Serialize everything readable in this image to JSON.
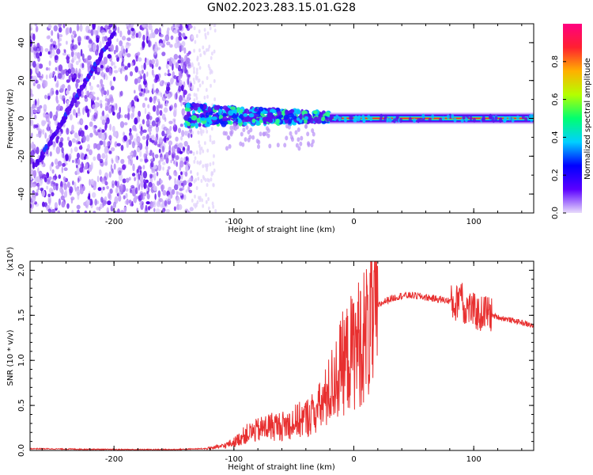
{
  "chart_data": [
    {
      "type": "heatmap",
      "title": "GN02.2023.283.15.01.G28",
      "xlabel": "Height of straight line (km)",
      "ylabel": "Frequency (Hz)",
      "xlim": [
        -270,
        150
      ],
      "ylim": [
        -50,
        50
      ],
      "xticks": [
        -200,
        -100,
        0,
        100
      ],
      "yticks": [
        -40,
        -20,
        0,
        20,
        40
      ],
      "colorbar": {
        "label": "Normalized spectral amplitude",
        "range": [
          0.0,
          1.0
        ],
        "ticks": [
          0.0,
          0.2,
          0.4,
          0.6,
          0.8
        ],
        "colormap": [
          "#e8dcfb",
          "#5b00ff",
          "#0000ff",
          "#00d0ff",
          "#00ff70",
          "#b4ff00",
          "#ffb000",
          "#ff2030",
          "#ff0080"
        ]
      },
      "features": {
        "noise_region_x": [
          -270,
          -135
        ],
        "diagonal_track": {
          "x": [
            -265,
            -200
          ],
          "y": [
            -25,
            45
          ]
        },
        "carrier_line_y": 0,
        "carrier_x": [
          -140,
          150
        ]
      }
    },
    {
      "type": "line",
      "xlabel": "Height of straight line (km)",
      "ylabel": "SNR (10 * v/v)",
      "multiplier": "(x10⁴)",
      "xlim": [
        -270,
        150
      ],
      "ylim": [
        0,
        2.1
      ],
      "xticks": [
        -200,
        -100,
        0,
        100
      ],
      "yticks": [
        0.0,
        0.5,
        1.0,
        1.5,
        2.0
      ],
      "color": "#e83030",
      "series": [
        {
          "name": "SNR",
          "x": [
            -270,
            -200,
            -150,
            -125,
            -110,
            -100,
            -90,
            -80,
            -70,
            -60,
            -50,
            -40,
            -35,
            -30,
            -25,
            -20,
            -15,
            -10,
            -5,
            0,
            5,
            10,
            15,
            20,
            25,
            30,
            35,
            40,
            50,
            60,
            70,
            80,
            85,
            88,
            90,
            92,
            95,
            100,
            105,
            110,
            115,
            120,
            130,
            140,
            150
          ],
          "values": [
            0.02,
            0.01,
            0.01,
            0.02,
            0.05,
            0.1,
            0.2,
            0.25,
            0.3,
            0.3,
            0.35,
            0.4,
            0.45,
            0.5,
            0.6,
            0.75,
            0.9,
            1.05,
            1.15,
            1.25,
            1.35,
            1.45,
            1.55,
            1.6,
            1.65,
            1.68,
            1.7,
            1.72,
            1.72,
            1.7,
            1.68,
            1.66,
            1.6,
            1.75,
            1.8,
            1.55,
            1.6,
            1.55,
            1.5,
            1.55,
            1.5,
            1.48,
            1.45,
            1.42,
            1.38
          ]
        }
      ]
    }
  ]
}
